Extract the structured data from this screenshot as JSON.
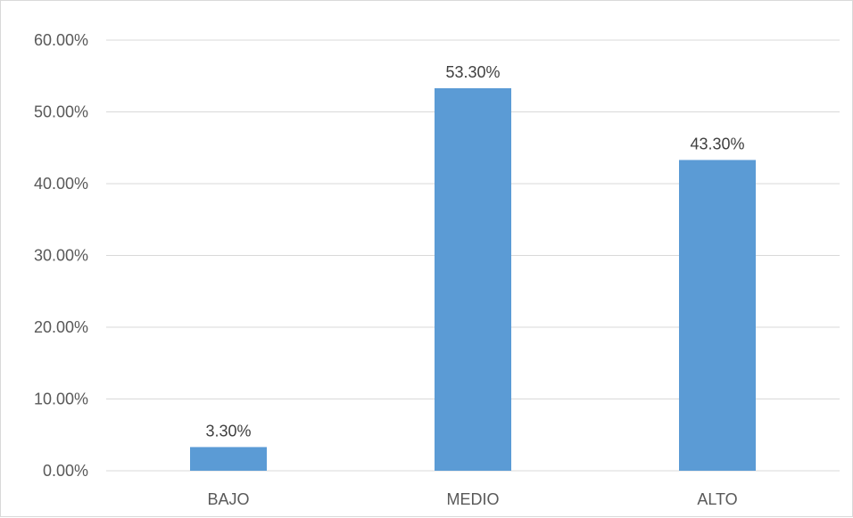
{
  "chart_data": {
    "type": "bar",
    "title": "",
    "xlabel": "",
    "ylabel": "",
    "categories": [
      "BAJO",
      "MEDIO",
      "ALTO"
    ],
    "values": [
      3.3,
      53.3,
      43.3
    ],
    "data_labels": [
      "3.30%",
      "53.30%",
      "43.30%"
    ],
    "ylim": [
      0,
      60
    ],
    "yticks": [
      0,
      10,
      20,
      30,
      40,
      50,
      60
    ],
    "ytick_labels": [
      "0.00%",
      "10.00%",
      "20.00%",
      "30.00%",
      "40.00%",
      "50.00%",
      "60.00%"
    ],
    "grid": true,
    "legend": "none",
    "bar_color": "#5B9BD5",
    "grid_color": "#d9d9d9"
  }
}
